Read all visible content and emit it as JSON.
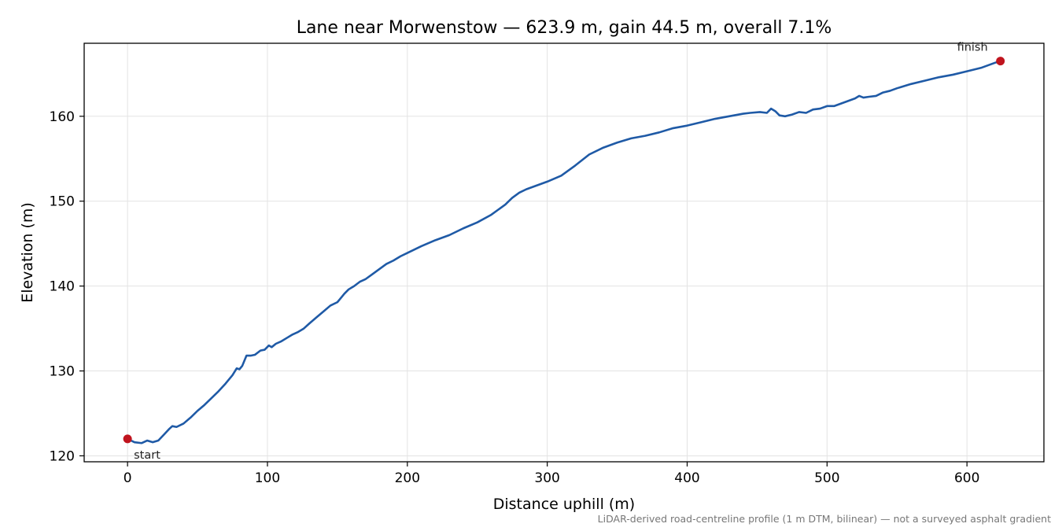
{
  "chart_data": {
    "type": "line",
    "title": "Lane near Morwenstow — 623.9 m, gain 44.5 m, overall 7.1%",
    "xlabel": "Distance uphill (m)",
    "ylabel": "Elevation (m)",
    "xlim": [
      -31,
      655
    ],
    "ylim": [
      119.3,
      168.6
    ],
    "x_ticks": [
      0,
      100,
      200,
      300,
      400,
      500,
      600
    ],
    "y_ticks": [
      120,
      130,
      140,
      150,
      160
    ],
    "grid": true,
    "series": [
      {
        "color": "#1f5aa6",
        "x": [
          0,
          5,
          10,
          14,
          18,
          22,
          26,
          30,
          32,
          35,
          40,
          45,
          50,
          55,
          60,
          65,
          70,
          75,
          78,
          80,
          82,
          85,
          88,
          91,
          95,
          98,
          101,
          103,
          106,
          110,
          114,
          118,
          122,
          126,
          130,
          135,
          140,
          145,
          150,
          153,
          155,
          158,
          162,
          166,
          170,
          175,
          180,
          185,
          190,
          195,
          200,
          210,
          220,
          230,
          240,
          250,
          260,
          265,
          270,
          275,
          280,
          285,
          290,
          300,
          310,
          320,
          330,
          340,
          350,
          360,
          370,
          380,
          390,
          400,
          410,
          420,
          430,
          440,
          445,
          452,
          457,
          460,
          463,
          466,
          470,
          475,
          480,
          485,
          490,
          495,
          500,
          505,
          510,
          515,
          520,
          523,
          526,
          530,
          535,
          540,
          545,
          550,
          560,
          570,
          580,
          590,
          600,
          610,
          615,
          620,
          623.9
        ],
        "y": [
          122.0,
          121.6,
          121.5,
          121.8,
          121.6,
          121.8,
          122.5,
          123.2,
          123.5,
          123.4,
          123.8,
          124.5,
          125.3,
          126.0,
          126.8,
          127.6,
          128.5,
          129.5,
          130.3,
          130.2,
          130.6,
          131.8,
          131.8,
          131.9,
          132.4,
          132.5,
          133.0,
          132.8,
          133.2,
          133.5,
          133.9,
          134.3,
          134.6,
          135.0,
          135.6,
          136.3,
          137.0,
          137.7,
          138.1,
          138.7,
          139.1,
          139.6,
          140.0,
          140.5,
          140.8,
          141.4,
          142.0,
          142.6,
          143.0,
          143.5,
          143.9,
          144.7,
          145.4,
          146.0,
          146.8,
          147.5,
          148.4,
          149.0,
          149.6,
          150.4,
          151.0,
          151.4,
          151.7,
          152.3,
          153.0,
          154.2,
          155.5,
          156.3,
          156.9,
          157.4,
          157.7,
          158.1,
          158.6,
          158.9,
          159.3,
          159.7,
          160.0,
          160.3,
          160.4,
          160.5,
          160.4,
          160.9,
          160.6,
          160.1,
          160.0,
          160.2,
          160.5,
          160.4,
          160.8,
          160.9,
          161.2,
          161.2,
          161.5,
          161.8,
          162.1,
          162.4,
          162.2,
          162.3,
          162.4,
          162.8,
          163.0,
          163.3,
          163.8,
          164.2,
          164.6,
          164.9,
          165.3,
          165.7,
          166.0,
          166.3,
          166.5
        ]
      }
    ],
    "markers": [
      {
        "x": 0,
        "y": 122.0,
        "label": "start",
        "color": "#c0141e"
      },
      {
        "x": 623.9,
        "y": 166.5,
        "label": "finish",
        "color": "#c0141e"
      }
    ]
  },
  "footnote": "LiDAR-derived road-centreline profile (1 m DTM, bilinear) — not a surveyed asphalt gradient"
}
